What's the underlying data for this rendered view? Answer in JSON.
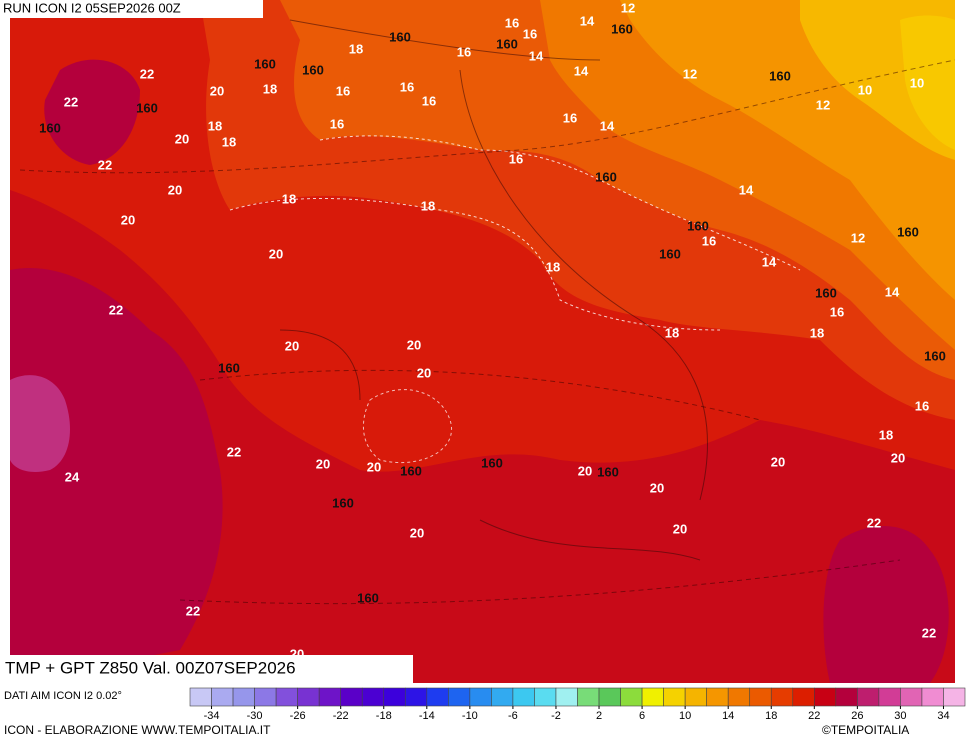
{
  "header": {
    "run_label": "RUN ICON I2 05SEP2026 00Z"
  },
  "map": {
    "contour_labels": [
      "16",
      "14",
      "12",
      "160",
      "160",
      "16",
      "160",
      "14",
      "18",
      "16",
      "160",
      "160",
      "22",
      "14",
      "12",
      "160",
      "10",
      "20",
      "18",
      "16",
      "16",
      "16",
      "10",
      "12",
      "22",
      "160",
      "160",
      "18",
      "20",
      "18",
      "16",
      "16",
      "14",
      "22",
      "16",
      "160",
      "20",
      "14",
      "18",
      "18",
      "20",
      "160",
      "16",
      "12",
      "160",
      "20",
      "160",
      "14",
      "18",
      "160",
      "14",
      "22",
      "16",
      "18",
      "18",
      "20",
      "20",
      "160",
      "160",
      "20",
      "16",
      "18",
      "22",
      "20",
      "20",
      "20",
      "160",
      "160",
      "20",
      "20",
      "160",
      "24",
      "20",
      "160",
      "22",
      "20",
      "20",
      "160",
      "22",
      "22",
      "20"
    ]
  },
  "footer": {
    "title": "TMP + GPT Z850 Val. 00Z07SEP2026",
    "data_source": "DATI AIM ICON I2 0.02°",
    "credit": "ICON - ELABORAZIONE WWW.TEMPOITALIA.IT",
    "copyright": "©TEMPOITALIA"
  },
  "colorbar": {
    "lim": [
      -36,
      36
    ],
    "colors": [
      "#c8c8f5",
      "#aaaaf0",
      "#9696eb",
      "#8c78e6",
      "#8250dc",
      "#7832d2",
      "#6e14c8",
      "#5a00c8",
      "#4b00d2",
      "#3c00dc",
      "#2d14e6",
      "#1e3cf0",
      "#1e64f0",
      "#288cf0",
      "#32aaf0",
      "#3cc8f0",
      "#5adcf0",
      "#a0f0f0",
      "#78dc78",
      "#5ac85a",
      "#8cdc3c",
      "#f0f000",
      "#f5d200",
      "#f5b400",
      "#f59600",
      "#f07800",
      "#eb5a00",
      "#e63c00",
      "#dc1e00",
      "#c80014",
      "#b4003c",
      "#be1e6e",
      "#d23c96",
      "#e164b4",
      "#f08cd2",
      "#f5b4e6"
    ],
    "ticks": [
      -34,
      -30,
      -26,
      -22,
      -18,
      -14,
      -10,
      -6,
      -2,
      2,
      6,
      10,
      14,
      18,
      22,
      26,
      30,
      34
    ]
  }
}
